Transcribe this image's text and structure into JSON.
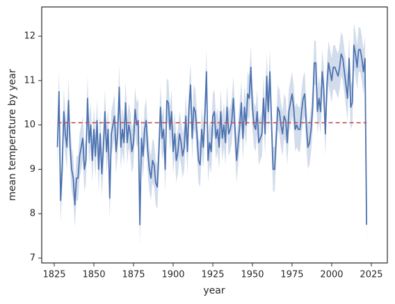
{
  "chart_data": {
    "type": "line",
    "xlabel": "year",
    "ylabel": "mean temperature by year",
    "x": [
      1827,
      1828,
      1829,
      1830,
      1831,
      1832,
      1833,
      1834,
      1835,
      1836,
      1837,
      1838,
      1839,
      1840,
      1841,
      1842,
      1843,
      1844,
      1845,
      1846,
      1847,
      1848,
      1849,
      1850,
      1851,
      1852,
      1853,
      1854,
      1855,
      1856,
      1857,
      1858,
      1859,
      1860,
      1861,
      1862,
      1863,
      1864,
      1865,
      1866,
      1867,
      1868,
      1869,
      1870,
      1871,
      1872,
      1873,
      1874,
      1875,
      1876,
      1877,
      1878,
      1879,
      1880,
      1881,
      1882,
      1883,
      1884,
      1885,
      1886,
      1887,
      1888,
      1889,
      1890,
      1891,
      1892,
      1893,
      1894,
      1895,
      1896,
      1897,
      1898,
      1899,
      1900,
      1901,
      1902,
      1903,
      1904,
      1905,
      1906,
      1907,
      1908,
      1909,
      1910,
      1911,
      1912,
      1913,
      1914,
      1915,
      1916,
      1917,
      1918,
      1919,
      1920,
      1921,
      1922,
      1923,
      1924,
      1925,
      1926,
      1927,
      1928,
      1929,
      1930,
      1931,
      1932,
      1933,
      1934,
      1935,
      1936,
      1937,
      1938,
      1939,
      1940,
      1941,
      1942,
      1943,
      1944,
      1945,
      1946,
      1947,
      1948,
      1949,
      1950,
      1951,
      1952,
      1953,
      1954,
      1955,
      1956,
      1957,
      1958,
      1959,
      1960,
      1961,
      1962,
      1963,
      1964,
      1965,
      1966,
      1967,
      1968,
      1969,
      1970,
      1971,
      1972,
      1973,
      1974,
      1975,
      1976,
      1977,
      1978,
      1979,
      1980,
      1981,
      1982,
      1983,
      1984,
      1985,
      1986,
      1987,
      1988,
      1989,
      1990,
      1991,
      1992,
      1993,
      1994,
      1995,
      1996,
      1997,
      1998,
      1999,
      2000,
      2001,
      2002,
      2003,
      2004,
      2005,
      2006,
      2007,
      2008,
      2009,
      2010,
      2011,
      2012,
      2013,
      2014,
      2015,
      2016,
      2017,
      2018,
      2019,
      2020,
      2021,
      2022
    ],
    "series": [
      {
        "color": "#4c72b0",
        "band_halfwidth": 0.5,
        "values": [
          9.5,
          10.75,
          8.3,
          9.0,
          10.3,
          9.8,
          9.5,
          10.55,
          9.5,
          9.0,
          8.8,
          8.2,
          8.8,
          8.8,
          9.3,
          9.5,
          9.7,
          9.0,
          9.2,
          10.6,
          9.6,
          10.0,
          9.2,
          9.9,
          9.3,
          10.1,
          9.0,
          9.8,
          8.9,
          9.5,
          10.3,
          9.4,
          9.9,
          8.35,
          9.8,
          10.0,
          10.2,
          9.4,
          9.8,
          10.85,
          9.5,
          9.9,
          9.6,
          10.5,
          9.6,
          10.0,
          9.8,
          9.4,
          9.6,
          10.35,
          10.0,
          10.1,
          7.75,
          9.7,
          9.3,
          9.9,
          10.1,
          9.4,
          9.0,
          8.8,
          9.2,
          9.1,
          8.7,
          8.6,
          9.4,
          10.4,
          9.7,
          9.9,
          9.0,
          10.55,
          10.5,
          9.9,
          10.3,
          9.4,
          9.8,
          9.2,
          9.4,
          9.8,
          9.6,
          9.3,
          9.5,
          10.2,
          9.4,
          10.4,
          10.9,
          9.7,
          10.4,
          10.3,
          9.8,
          9.2,
          9.1,
          9.9,
          9.5,
          10.2,
          11.2,
          9.2,
          9.6,
          9.4,
          10.2,
          10.3,
          9.7,
          9.9,
          9.5,
          10.3,
          9.7,
          10.0,
          9.6,
          10.4,
          9.8,
          9.9,
          10.1,
          10.6,
          9.9,
          9.2,
          9.6,
          10.0,
          10.5,
          9.7,
          10.4,
          10.0,
          10.7,
          10.6,
          11.3,
          10.4,
          10.0,
          9.9,
          10.3,
          9.6,
          9.7,
          9.8,
          10.6,
          9.8,
          11.1,
          10.3,
          11.2,
          10.1,
          9.0,
          9.0,
          9.7,
          10.4,
          10.3,
          10.0,
          9.8,
          10.2,
          10.1,
          9.6,
          10.3,
          10.5,
          10.7,
          10.4,
          9.9,
          10.0,
          9.9,
          9.9,
          10.3,
          10.6,
          10.7,
          10.0,
          9.5,
          9.6,
          9.9,
          10.4,
          11.4,
          11.4,
          10.3,
          10.6,
          10.3,
          11.2,
          10.8,
          9.8,
          10.9,
          11.4,
          11.2,
          11.0,
          11.3,
          11.3,
          11.2,
          11.1,
          11.3,
          11.6,
          11.5,
          11.2,
          10.9,
          10.6,
          11.5,
          10.4,
          10.5,
          11.8,
          11.6,
          11.3,
          11.7,
          11.7,
          11.5,
          11.2,
          11.5,
          7.75
        ]
      }
    ],
    "reference_line": {
      "value": 10.05,
      "color": "#c44e52",
      "style": "dashed"
    },
    "xlim": [
      1817.1,
      2035.1
    ],
    "xticks": [
      1825,
      1850,
      1875,
      1900,
      1925,
      1950,
      1975,
      2000,
      2025
    ],
    "ylim": [
      6.89,
      12.66
    ],
    "yticks": [
      7,
      8,
      9,
      10,
      11,
      12
    ],
    "grid": false
  }
}
